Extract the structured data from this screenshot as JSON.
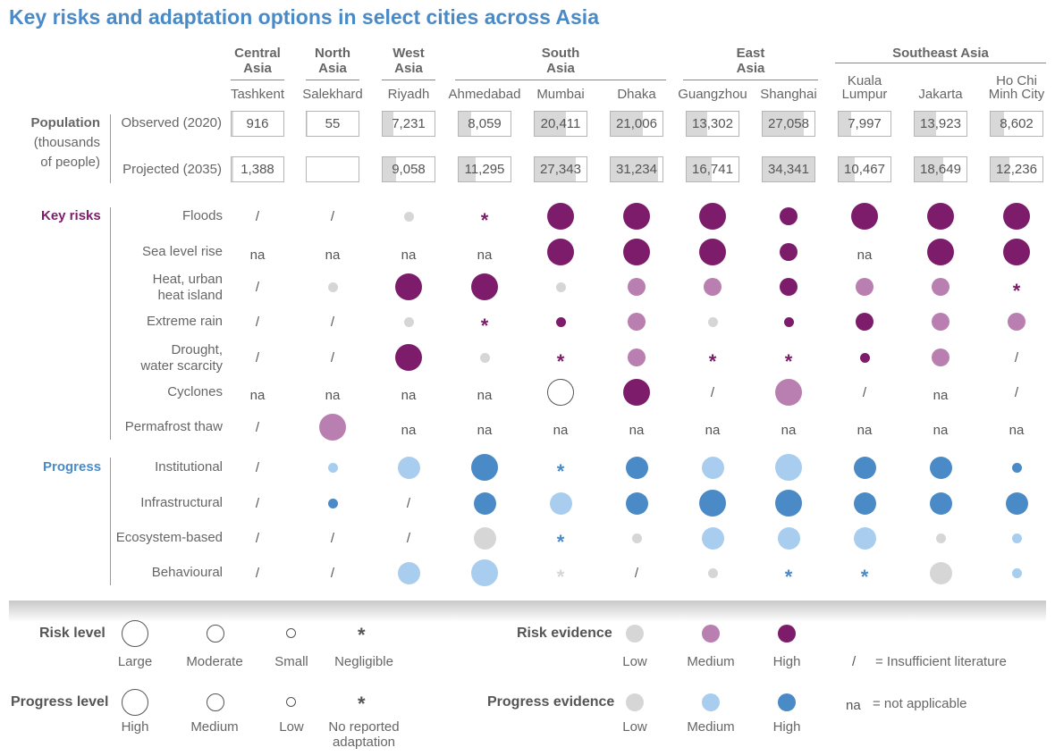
{
  "title": "Key risks and adaptation options in select cities across Asia",
  "colors": {
    "risk_high": "#7d1c6b",
    "risk_medium": "#b97fb0",
    "risk_low": "#d6d6d6",
    "progress_high": "#4a8ac7",
    "progress_medium": "#a8cdee",
    "progress_low": "#d6d6d6",
    "title": "#4a8ac7"
  },
  "regions": [
    {
      "name": "Central\nAsia"
    },
    {
      "name": "North\nAsia"
    },
    {
      "name": "West\nAsia"
    },
    {
      "name": "South\nAsia"
    },
    {
      "name": "East\nAsia"
    },
    {
      "name": "Southeast Asia"
    }
  ],
  "cities": [
    "Tashkent",
    "Salekhard",
    "Riyadh",
    "Ahmedabad",
    "Mumbai",
    "Dhaka",
    "Guangzhou",
    "Shanghai",
    "Kuala\nLumpur",
    "Jakarta",
    "Ho Chi\nMinh City"
  ],
  "population": {
    "label": "Population",
    "sublabel": "(thousands\nof people)",
    "observed_label": "Observed (2020)",
    "projected_label": "Projected (2035)",
    "observed": [
      "916",
      "55",
      "7,231",
      "8,059",
      "20,411",
      "21,006",
      "13,302",
      "27,058",
      "7,997",
      "13,923",
      "8,602"
    ],
    "projected": [
      "1,388",
      "",
      "9,058",
      "11,295",
      "27,343",
      "31,234",
      "16,741",
      "34,341",
      "10,467",
      "18,649",
      "12,236"
    ]
  },
  "key_risks": {
    "label": "Key risks",
    "rows": [
      {
        "name": "Floods",
        "cells": [
          "/",
          "/",
          "s-l",
          "n-h",
          "L-h",
          "L-h",
          "L-h",
          "S-h",
          "L-h",
          "L-h",
          "L-h"
        ]
      },
      {
        "name": "Sea level rise",
        "cells": [
          "na",
          "na",
          "na",
          "na",
          "L-h",
          "L-h",
          "L-h",
          "S-h",
          "na",
          "L-h",
          "L-h"
        ]
      },
      {
        "name": "Heat, urban\nheat island",
        "cells": [
          "/",
          "s-l",
          "L-h",
          "L-h",
          "s-l",
          "S-m",
          "S-m",
          "S-h",
          "S-m",
          "S-m",
          "n-h"
        ]
      },
      {
        "name": "Extreme rain",
        "cells": [
          "/",
          "/",
          "s-l",
          "n-h",
          "s-h",
          "S-m",
          "s-l",
          "s-h",
          "S-h",
          "S-m",
          "S-m"
        ]
      },
      {
        "name": "Drought,\nwater scarcity",
        "cells": [
          "/",
          "/",
          "L-h",
          "s-l",
          "n-h",
          "S-m",
          "n-h",
          "n-h",
          "s-h",
          "S-m",
          "/"
        ]
      },
      {
        "name": "Cyclones",
        "cells": [
          "na",
          "na",
          "na",
          "na",
          "L-o",
          "L-h",
          "/",
          "L-m",
          "/",
          "na",
          "/"
        ]
      },
      {
        "name": "Permafrost thaw",
        "cells": [
          "/",
          "L-m",
          "na",
          "na",
          "na",
          "na",
          "na",
          "na",
          "na",
          "na",
          "na"
        ]
      }
    ]
  },
  "progress": {
    "label": "Progress",
    "rows": [
      {
        "name": "Institutional",
        "cells": [
          "/",
          "s-m",
          "M-m",
          "L-h",
          "n-h",
          "M-h",
          "M-m",
          "L-m",
          "M-h",
          "M-h",
          "s-h"
        ]
      },
      {
        "name": "Infrastructural",
        "cells": [
          "/",
          "s-h",
          "/",
          "M-h",
          "M-m",
          "M-h",
          "L-h",
          "L-h",
          "M-h",
          "M-h",
          "M-h"
        ]
      },
      {
        "name": "Ecosystem-based",
        "cells": [
          "/",
          "/",
          "/",
          "M-l",
          "n-h",
          "s-l",
          "M-m",
          "M-m",
          "M-m",
          "s-l",
          "s-m"
        ]
      },
      {
        "name": "Behavioural",
        "cells": [
          "/",
          "/",
          "M-m",
          "L-m",
          "n-l",
          "/",
          "s-l",
          "n-h",
          "n-h",
          "M-l",
          "s-m"
        ]
      }
    ]
  },
  "legend": {
    "risk_level": {
      "title": "Risk level",
      "items": [
        "Large",
        "Moderate",
        "Small",
        "Negligible"
      ]
    },
    "risk_evidence": {
      "title": "Risk evidence",
      "items": [
        "Low",
        "Medium",
        "High"
      ]
    },
    "progress_level": {
      "title": "Progress level",
      "items": [
        "High",
        "Medium",
        "Low",
        "No reported\nadaptation"
      ]
    },
    "progress_evidence": {
      "title": "Progress evidence",
      "items": [
        "Low",
        "Medium",
        "High"
      ]
    },
    "insufficient": {
      "symbol": "/",
      "text": "= Insufficient literature"
    },
    "not_applicable": {
      "symbol": "na",
      "text": "= not applicable"
    }
  }
}
